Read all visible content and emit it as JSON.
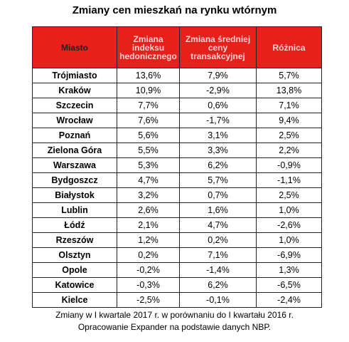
{
  "title": "Zmiany cen mieszkań na rynku wtórnym",
  "table": {
    "header": [
      "Miasto",
      "Zmiana indeksu hedonicznego",
      "Zmiana średniej ceny transakcyjnej",
      "Różnica"
    ],
    "rows": [
      [
        "Trójmiasto",
        "13,6%",
        "7,9%",
        "5,7%"
      ],
      [
        "Kraków",
        "10,9%",
        "-2,9%",
        "13,8%"
      ],
      [
        "Szczecin",
        "7,7%",
        "0,6%",
        "7,1%"
      ],
      [
        "Wrocław",
        "7,6%",
        "-1,7%",
        "9,4%"
      ],
      [
        "Poznań",
        "5,6%",
        "3,1%",
        "2,5%"
      ],
      [
        "Zielona Góra",
        "5,5%",
        "3,3%",
        "2,2%"
      ],
      [
        "Warszawa",
        "5,3%",
        "6,2%",
        "-0,9%"
      ],
      [
        "Bydgoszcz",
        "4,7%",
        "5,7%",
        "-1,1%"
      ],
      [
        "Białystok",
        "3,2%",
        "0,7%",
        "2,5%"
      ],
      [
        "Lublin",
        "2,6%",
        "1,6%",
        "1,0%"
      ],
      [
        "Łódź",
        "2,1%",
        "4,7%",
        "-2,6%"
      ],
      [
        "Rzeszów",
        "1,2%",
        "0,2%",
        "1,0%"
      ],
      [
        "Olsztyn",
        "0,2%",
        "7,1%",
        "-6,9%"
      ],
      [
        "Opole",
        "-0,2%",
        "-1,4%",
        "1,3%"
      ],
      [
        "Katowice",
        "-0,3%",
        "6,2%",
        "-6,5%"
      ],
      [
        "Kielce",
        "-2,5%",
        "-0,1%",
        "-2,4%"
      ]
    ]
  },
  "footer": [
    "Zmiany w I kwartale 2017 r. w porównaniu do I kwartału 2016 r.",
    "Opracowanie Expander na podstawie danych NBP."
  ]
}
